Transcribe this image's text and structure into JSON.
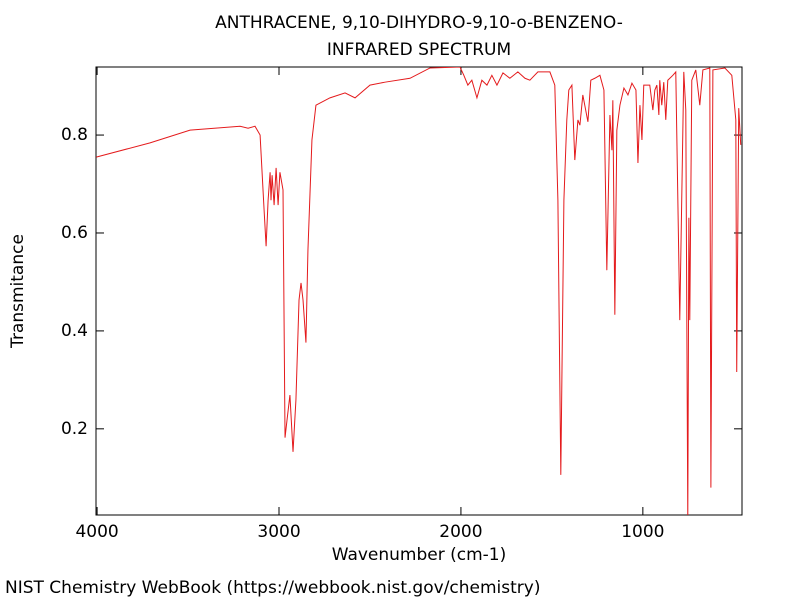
{
  "chart_data": {
    "type": "line",
    "title": "ANTHRACENE, 9,10-DIHYDRO-9,10-o-BENZENO-",
    "subtitle": "INFRARED SPECTRUM",
    "x_label": "Wavenumber (cm-1)",
    "y_label": "Transmitance",
    "footer": "NIST Chemistry WebBook (https://webbook.nist.gov/chemistry)",
    "xlim": [
      4006,
      455
    ],
    "ylim": [
      0.024,
      0.939
    ],
    "xticks": [
      4000,
      3000,
      2000,
      1000
    ],
    "yticks": [
      0.2,
      0.4,
      0.6,
      0.8
    ],
    "series": [
      {
        "name": "Transmitance",
        "color": "#e41a1c",
        "x": [
          4005,
          3709,
          3489,
          3214,
          3170,
          3132,
          3104,
          3082,
          3071,
          3060,
          3049,
          3044,
          3038,
          3027,
          3016,
          3005,
          2995,
          2978,
          2967,
          2956,
          2940,
          2923,
          2907,
          2890,
          2879,
          2868,
          2852,
          2841,
          2819,
          2797,
          2720,
          2637,
          2582,
          2500,
          2418,
          2280,
          2170,
          2005,
          1984,
          1962,
          1940,
          1912,
          1885,
          1857,
          1830,
          1802,
          1769,
          1731,
          1687,
          1648,
          1621,
          1577,
          1511,
          1484,
          1467,
          1451,
          1434,
          1418,
          1407,
          1390,
          1374,
          1357,
          1346,
          1330,
          1302,
          1286,
          1264,
          1236,
          1214,
          1198,
          1181,
          1170,
          1165,
          1154,
          1143,
          1126,
          1104,
          1082,
          1060,
          1038,
          1027,
          1016,
          1005,
          995,
          962,
          945,
          934,
          923,
          912,
          907,
          896,
          885,
          874,
          863,
          835,
          819,
          797,
          775,
          764,
          753,
          747,
          742,
          731,
          709,
          687,
          670,
          632,
          626,
          615,
          549,
          511,
          489,
          484,
          473,
          462
        ],
        "values": [
          0.755,
          0.784,
          0.81,
          0.818,
          0.814,
          0.818,
          0.8,
          0.647,
          0.573,
          0.667,
          0.724,
          0.667,
          0.718,
          0.657,
          0.733,
          0.657,
          0.724,
          0.688,
          0.182,
          0.218,
          0.269,
          0.153,
          0.259,
          0.463,
          0.498,
          0.463,
          0.376,
          0.565,
          0.79,
          0.861,
          0.876,
          0.886,
          0.876,
          0.902,
          0.908,
          0.916,
          0.937,
          0.939,
          0.922,
          0.902,
          0.912,
          0.876,
          0.912,
          0.902,
          0.922,
          0.902,
          0.927,
          0.916,
          0.929,
          0.916,
          0.912,
          0.929,
          0.929,
          0.902,
          0.667,
          0.106,
          0.667,
          0.831,
          0.892,
          0.902,
          0.749,
          0.831,
          0.82,
          0.882,
          0.827,
          0.912,
          0.916,
          0.922,
          0.892,
          0.524,
          0.841,
          0.769,
          0.871,
          0.433,
          0.81,
          0.861,
          0.896,
          0.882,
          0.906,
          0.892,
          0.743,
          0.861,
          0.79,
          0.902,
          0.902,
          0.851,
          0.892,
          0.902,
          0.841,
          0.912,
          0.861,
          0.908,
          0.831,
          0.912,
          0.922,
          0.929,
          0.422,
          0.929,
          0.851,
          0.014,
          0.631,
          0.422,
          0.912,
          0.933,
          0.861,
          0.933,
          0.937,
          0.08,
          0.933,
          0.937,
          0.922,
          0.831,
          0.316,
          0.855,
          0.78
        ]
      }
    ]
  }
}
